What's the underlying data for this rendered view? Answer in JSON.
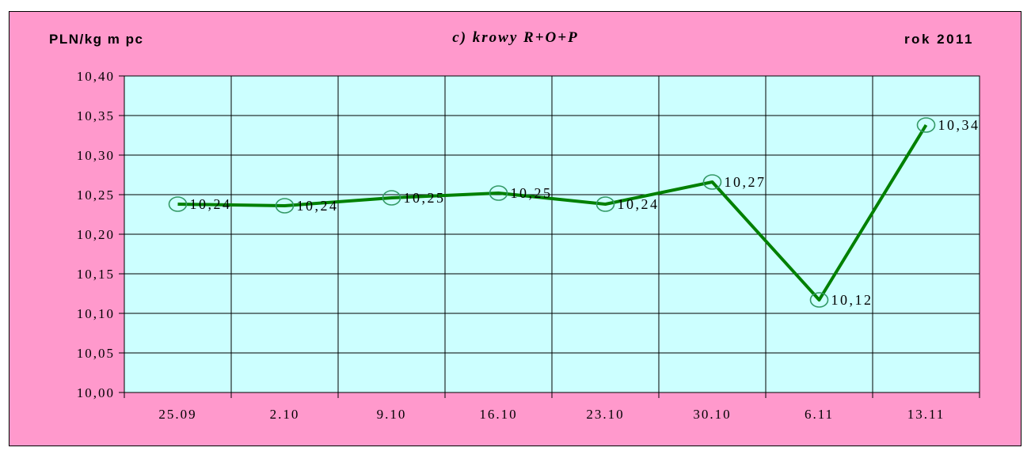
{
  "header": {
    "ylabel": "PLN/kg m pc",
    "title": "c) krowy R+O+P",
    "year": "rok 2011"
  },
  "colors": {
    "background": "#ff99cc",
    "plot_background": "#ccffff",
    "line": "#008000",
    "marker": "#339966"
  },
  "chart_data": {
    "type": "line",
    "title": "c) krowy R+O+P",
    "ylabel": "PLN/kg m pc",
    "xlabel": "",
    "categories": [
      "25.09",
      "2.10",
      "9.10",
      "16.10",
      "23.10",
      "30.10",
      "6.11",
      "13.11"
    ],
    "series": [
      {
        "values": [
          10.238,
          10.236,
          10.246,
          10.252,
          10.238,
          10.266,
          10.117,
          10.338
        ],
        "labels": [
          "10,24",
          "10,24",
          "10,25",
          "10,25",
          "10,24",
          "10,27",
          "10,12",
          "10,34"
        ]
      }
    ],
    "ylim": [
      10.0,
      10.4
    ],
    "yticks": [
      10.0,
      10.05,
      10.1,
      10.15,
      10.2,
      10.25,
      10.3,
      10.35,
      10.4
    ],
    "ytick_labels": [
      "10,00",
      "10,05",
      "10,10",
      "10,15",
      "10,20",
      "10,25",
      "10,30",
      "10,35",
      "10,40"
    ],
    "grid": true,
    "legend": "none"
  }
}
